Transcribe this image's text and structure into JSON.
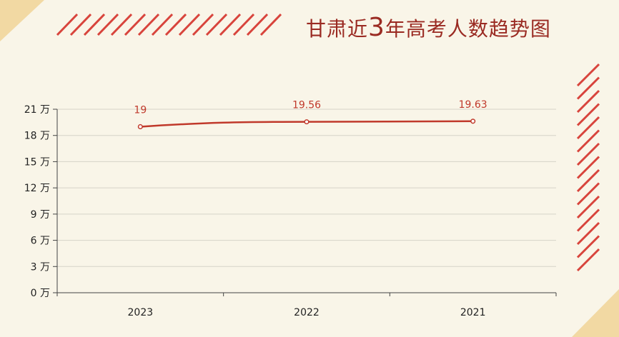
{
  "title": {
    "part1": "甘肃近",
    "number": "3",
    "part2": "年高考人数趋势图"
  },
  "colors": {
    "background": "#f9f5e8",
    "accent": "#d8443c",
    "line": "#c0392b",
    "title": "#9a2a22",
    "corner": "#f2d9a3"
  },
  "chart_data": {
    "type": "line",
    "categories": [
      "2023",
      "2022",
      "2021"
    ],
    "series": [
      {
        "values": [
          19,
          19.56,
          19.63
        ]
      }
    ],
    "data_labels": [
      "19",
      "19.56",
      "19.63"
    ],
    "y_ticks": [
      {
        "value": 0,
        "label": "0 万"
      },
      {
        "value": 3,
        "label": "3 万"
      },
      {
        "value": 6,
        "label": "6 万"
      },
      {
        "value": 9,
        "label": "9 万"
      },
      {
        "value": 12,
        "label": "12 万"
      },
      {
        "value": 15,
        "label": "15 万"
      },
      {
        "value": 18,
        "label": "18 万"
      },
      {
        "value": 21,
        "label": "21 万"
      }
    ],
    "ylim": [
      0,
      21
    ],
    "grid": true,
    "legend": "none"
  }
}
